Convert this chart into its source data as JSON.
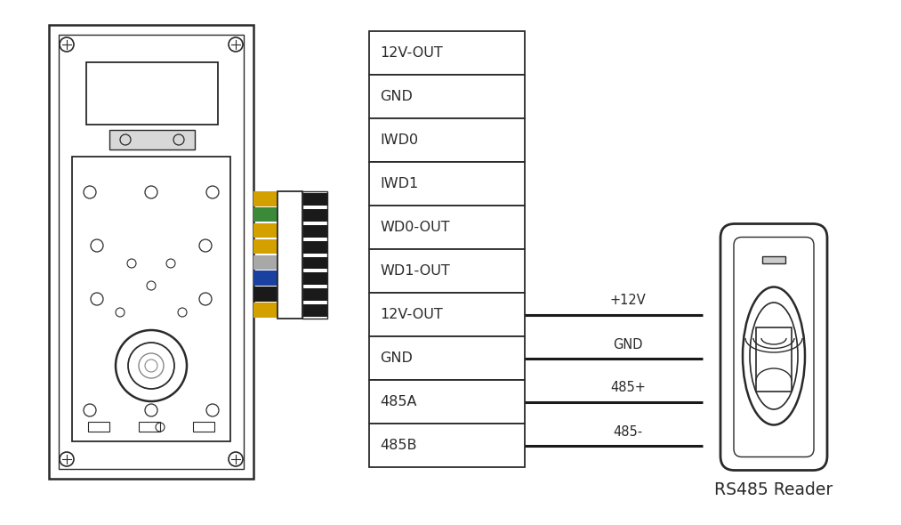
{
  "bg_color": "#ffffff",
  "line_color": "#2a2a2a",
  "text_color": "#2a2a2a",
  "table_labels": [
    "12V-OUT",
    "GND",
    "IWD0",
    "IWD1",
    "WD0-OUT",
    "WD1-OUT",
    "12V-OUT",
    "GND",
    "485A",
    "485B"
  ],
  "connected_rows": [
    6,
    7,
    8,
    9
  ],
  "connection_labels": [
    "+12V",
    "GND",
    "485+",
    "485-"
  ],
  "wire_colors": [
    "#D4A000",
    "#3A8A3A",
    "#D4A000",
    "#D4A000",
    "#A8A8A8",
    "#1A40A0",
    "#1A1A1A",
    "#D4A000"
  ],
  "reader_label": "RS485 Reader"
}
